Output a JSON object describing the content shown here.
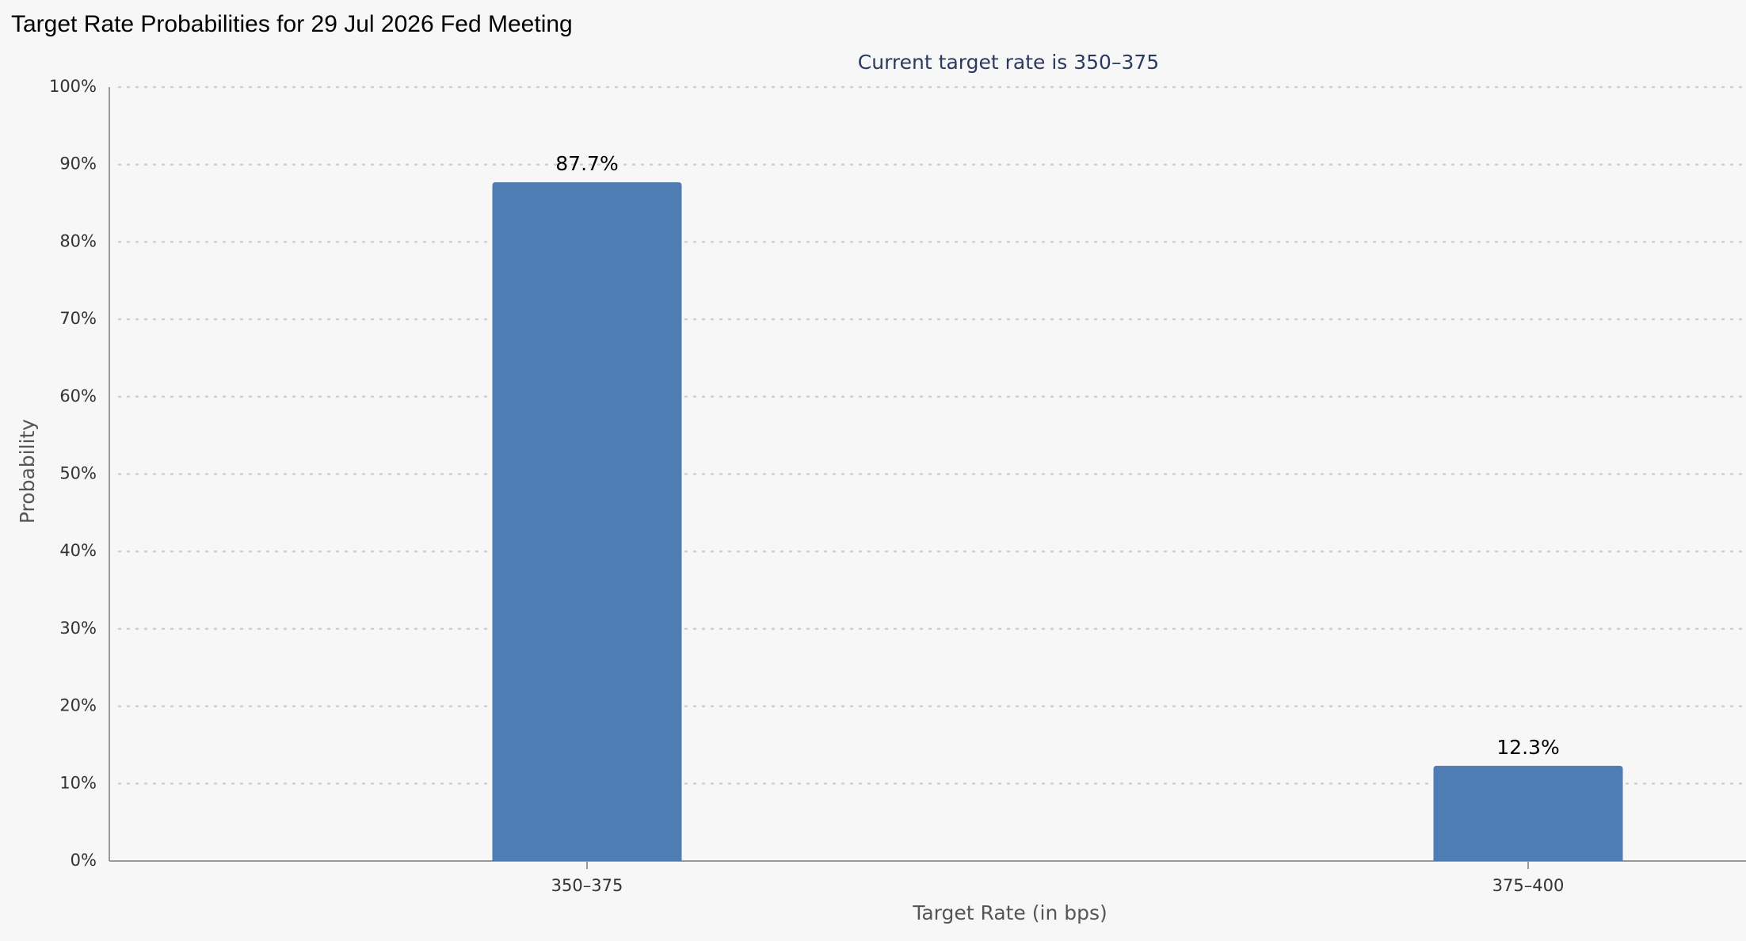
{
  "chart_data": {
    "type": "bar",
    "title": "Target Rate Probabilities for 29 Jul 2026 Fed Meeting",
    "subtitle": "Current target rate is 350–375",
    "x_label": "Target Rate (in bps)",
    "y_label": "Probability",
    "categories": [
      "350–375",
      "375–400"
    ],
    "values": [
      87.7,
      12.3
    ],
    "value_labels": [
      "87.7%",
      "12.3%"
    ],
    "color": "#4f7db3",
    "ylim": [
      0,
      100
    ],
    "yticks": [
      {
        "value": 0,
        "label": "0%"
      },
      {
        "value": 10,
        "label": "10%"
      },
      {
        "value": 20,
        "label": "20%"
      },
      {
        "value": 30,
        "label": "30%"
      },
      {
        "value": 40,
        "label": "40%"
      },
      {
        "value": 50,
        "label": "50%"
      },
      {
        "value": 60,
        "label": "60%"
      },
      {
        "value": 70,
        "label": "70%"
      },
      {
        "value": 80,
        "label": "80%"
      },
      {
        "value": 90,
        "label": "90%"
      },
      {
        "value": 100,
        "label": "100%"
      }
    ],
    "grid": true
  }
}
